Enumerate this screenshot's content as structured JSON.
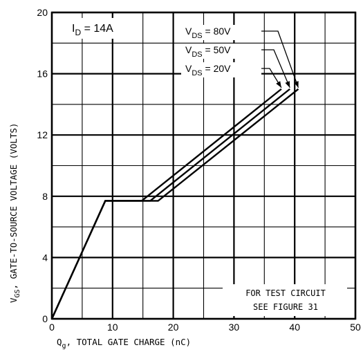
{
  "chart_data": {
    "type": "line",
    "x_label_main": "Q",
    "x_label_sub": "g",
    "x_label_rest": ",  TOTAL GATE CHARGE (nC)",
    "y_label_main": "V",
    "y_label_sub": "GS",
    "y_label_rest": ",  GATE-TO-SOURCE VOLTAGE (VOLTS)",
    "xlim": [
      0,
      50
    ],
    "ylim": [
      0,
      20
    ],
    "x_ticks": [
      "0",
      "10",
      "20",
      "30",
      "40",
      "50"
    ],
    "y_ticks": [
      "0",
      "4",
      "8",
      "12",
      "16",
      "20"
    ],
    "grid": true,
    "condition": {
      "main": "I",
      "sub": "D",
      "rest": " = 14A"
    },
    "series": [
      {
        "name": "80V",
        "x": [
          0,
          8.8,
          17.5,
          40.6
        ],
        "y": [
          0,
          7.7,
          7.7,
          15.0
        ]
      },
      {
        "name": "50V",
        "x": [
          0,
          8.8,
          16.2,
          39.2
        ],
        "y": [
          0,
          7.7,
          7.7,
          15.0
        ]
      },
      {
        "name": "20V",
        "x": [
          0,
          8.8,
          14.8,
          37.8
        ],
        "y": [
          0,
          7.7,
          7.7,
          15.0
        ]
      }
    ],
    "series_label_prefix": "V",
    "series_label_sub": "DS",
    "series_label_eq": "=",
    "note_lines": [
      "FOR TEST CIRCUIT",
      "SEE FIGURE 31"
    ]
  }
}
